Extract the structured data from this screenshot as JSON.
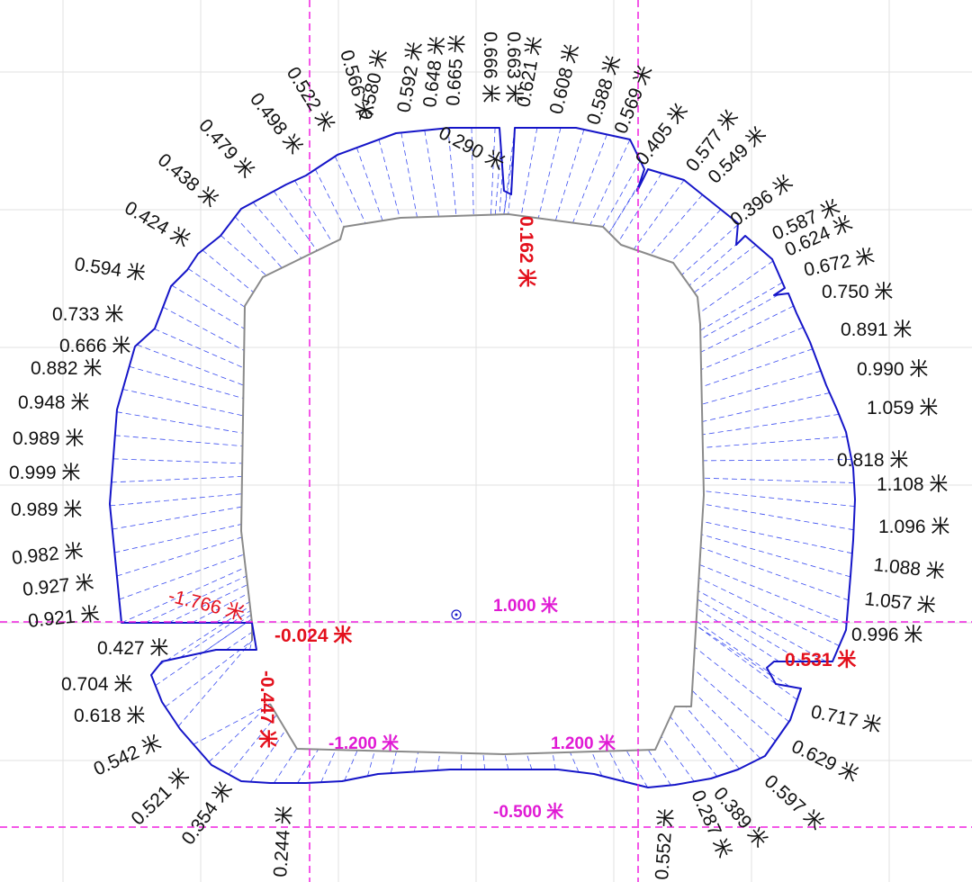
{
  "unit": "米",
  "colors": {
    "outline": "#1515c8",
    "rays": "#3a4cf0",
    "design_profile": "#8a8a8a",
    "guides": "#f020e0",
    "grid": "#e2e2e2",
    "negative_label": "#e3101c",
    "offset_label": "#e01ad4"
  },
  "overbreak_labels": [
    {
      "text": "0.666 米"
    },
    {
      "text": "0.663 米"
    },
    {
      "text": "0.621 米"
    },
    {
      "text": "0.665 米"
    },
    {
      "text": "0.648 米"
    },
    {
      "text": "0.592 米"
    },
    {
      "text": "0.580 米"
    },
    {
      "text": "0.566 米"
    },
    {
      "text": "0.608 米"
    },
    {
      "text": "0.588 米"
    },
    {
      "text": "0.569 米"
    },
    {
      "text": "0.522 米"
    },
    {
      "text": "0.498 米"
    },
    {
      "text": "0.479 米"
    },
    {
      "text": "0.438 米"
    },
    {
      "text": "0.424 米"
    },
    {
      "text": "0.594 米"
    },
    {
      "text": "0.733 米"
    },
    {
      "text": "0.666 米"
    },
    {
      "text": "0.882 米"
    },
    {
      "text": "0.948 米"
    },
    {
      "text": "0.989 米"
    },
    {
      "text": "0.999 米"
    },
    {
      "text": "0.989 米"
    },
    {
      "text": "0.982 米"
    },
    {
      "text": "0.927 米"
    },
    {
      "text": "0.921 米"
    },
    {
      "text": "0.427 米"
    },
    {
      "text": "0.704 米"
    },
    {
      "text": "0.618 米"
    },
    {
      "text": "0.542 米"
    },
    {
      "text": "0.521 米"
    },
    {
      "text": "0.354 米"
    },
    {
      "text": "0.244 米"
    },
    {
      "text": "0.290 米"
    },
    {
      "text": "0.405 米"
    },
    {
      "text": "0.577 米"
    },
    {
      "text": "0.549 米"
    },
    {
      "text": "0.396 米"
    },
    {
      "text": "0.587 米"
    },
    {
      "text": "0.624 米"
    },
    {
      "text": "0.672 米"
    },
    {
      "text": "0.750 米"
    },
    {
      "text": "0.891 米"
    },
    {
      "text": "0.990 米"
    },
    {
      "text": "1.059 米"
    },
    {
      "text": "0.818 米"
    },
    {
      "text": "1.108 米"
    },
    {
      "text": "1.096 米"
    },
    {
      "text": "1.088 米"
    },
    {
      "text": "1.057 米"
    },
    {
      "text": "0.996 米"
    },
    {
      "text": "0.717 米"
    },
    {
      "text": "0.629 米"
    },
    {
      "text": "0.597 米"
    },
    {
      "text": "0.389 米"
    },
    {
      "text": "0.287 米"
    },
    {
      "text": "0.552 米"
    }
  ],
  "negative_labels": [
    {
      "text": "0.162 米"
    },
    {
      "text": "-1.766 米"
    },
    {
      "text": "-0.024 米"
    },
    {
      "text": "-0.447 米"
    },
    {
      "text": "0.531 米"
    }
  ],
  "offset_labels": [
    {
      "text": "1.000 米"
    },
    {
      "text": "-1.200 米"
    },
    {
      "text": "1.200 米"
    },
    {
      "text": "-0.500 米"
    }
  ]
}
